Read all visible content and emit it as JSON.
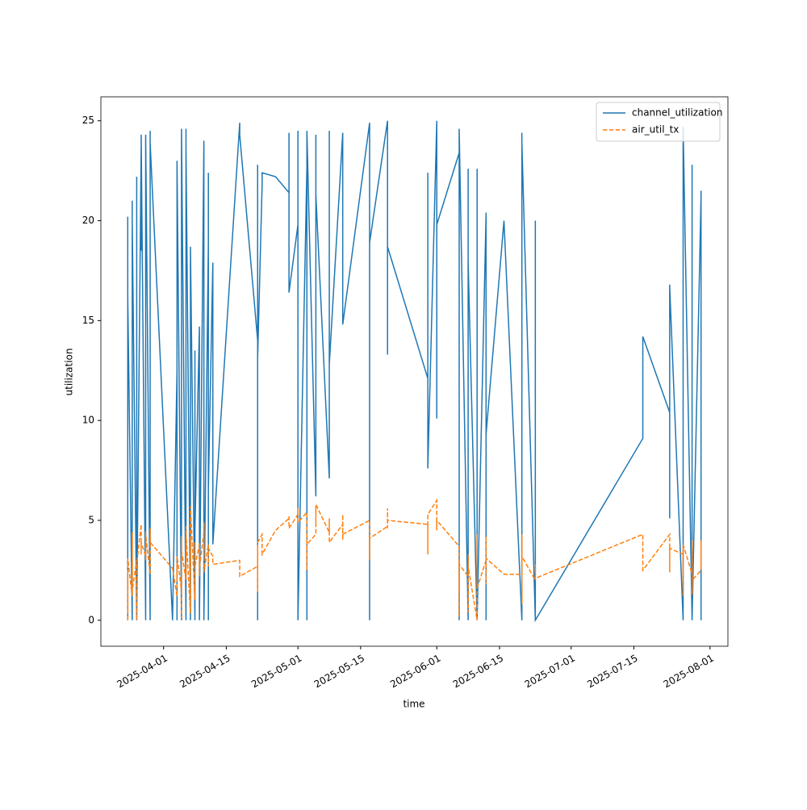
{
  "chart_data": {
    "type": "line",
    "xlabel": "time",
    "ylabel": "utilization",
    "x": [
      "2025-03-24",
      "2025-03-24",
      "2025-03-24",
      "2025-03-24",
      "2025-03-25",
      "2025-03-25",
      "2025-03-25",
      "2025-03-25",
      "2025-03-26",
      "2025-03-26",
      "2025-03-26",
      "2025-03-26",
      "2025-03-27",
      "2025-03-27",
      "2025-03-27",
      "2025-03-28",
      "2025-03-28",
      "2025-03-28",
      "2025-03-28",
      "2025-03-29",
      "2025-03-29",
      "2025-03-29",
      "2025-03-29",
      "2025-04-03",
      "2025-04-04",
      "2025-04-04",
      "2025-04-04",
      "2025-04-04",
      "2025-04-05",
      "2025-04-05",
      "2025-04-05",
      "2025-04-05",
      "2025-04-06",
      "2025-04-06",
      "2025-04-06",
      "2025-04-06",
      "2025-04-07",
      "2025-04-07",
      "2025-04-07",
      "2025-04-07",
      "2025-04-08",
      "2025-04-08",
      "2025-04-08",
      "2025-04-09",
      "2025-04-09",
      "2025-04-09",
      "2025-04-09",
      "2025-04-10",
      "2025-04-10",
      "2025-04-10",
      "2025-04-10",
      "2025-04-11",
      "2025-04-11",
      "2025-04-11",
      "2025-04-11",
      "2025-04-12",
      "2025-04-12",
      "2025-04-12",
      "2025-04-18",
      "2025-04-18",
      "2025-04-22",
      "2025-04-22",
      "2025-04-22",
      "2025-04-22",
      "2025-04-22",
      "2025-04-23",
      "2025-04-23",
      "2025-04-26",
      "2025-04-29",
      "2025-04-29",
      "2025-04-29",
      "2025-05-01",
      "2025-05-01",
      "2025-05-01",
      "2025-05-01",
      "2025-05-03",
      "2025-05-03",
      "2025-05-03",
      "2025-05-03",
      "2025-05-05",
      "2025-05-05",
      "2025-05-05",
      "2025-05-05",
      "2025-05-08",
      "2025-05-08",
      "2025-05-08",
      "2025-05-08",
      "2025-05-11",
      "2025-05-11",
      "2025-05-11",
      "2025-05-11",
      "2025-05-17",
      "2025-05-17",
      "2025-05-17",
      "2025-05-17",
      "2025-05-17",
      "2025-05-21",
      "2025-05-21",
      "2025-05-21",
      "2025-05-21",
      "2025-05-21",
      "2025-05-30",
      "2025-05-30",
      "2025-05-30",
      "2025-05-30",
      "2025-05-30",
      "2025-06-01",
      "2025-06-01",
      "2025-06-01",
      "2025-06-06",
      "2025-06-06",
      "2025-06-06",
      "2025-06-06",
      "2025-06-06",
      "2025-06-08",
      "2025-06-08",
      "2025-06-08",
      "2025-06-08",
      "2025-06-10",
      "2025-06-10",
      "2025-06-10",
      "2025-06-10",
      "2025-06-12",
      "2025-06-12",
      "2025-06-12",
      "2025-06-12",
      "2025-06-16",
      "2025-06-20",
      "2025-06-20",
      "2025-06-20",
      "2025-06-20",
      "2025-06-20",
      "2025-06-20",
      "2025-06-20",
      "2025-06-20",
      "2025-06-23",
      "2025-06-23",
      "2025-06-23",
      "2025-07-17",
      "2025-07-17",
      "2025-07-23",
      "2025-07-23",
      "2025-07-23",
      "2025-07-23",
      "2025-07-23",
      "2025-07-26",
      "2025-07-26",
      "2025-07-26",
      "2025-07-26",
      "2025-07-26",
      "2025-07-28",
      "2025-07-28",
      "2025-07-28",
      "2025-07-28",
      "2025-07-28",
      "2025-07-30",
      "2025-07-30",
      "2025-07-30",
      "2025-07-30"
    ],
    "series": [
      {
        "name": "channel_utilization",
        "color": "#1f77b4",
        "style": "solid",
        "values": [
          7.8,
          20.2,
          0,
          16.2,
          0,
          21,
          2,
          20,
          0,
          19.8,
          22.2,
          0,
          23.7,
          18.5,
          24.3,
          0,
          23.2,
          2.1,
          24.3,
          0,
          24.5,
          14.6,
          23.9,
          0,
          12.5,
          0,
          8.4,
          23,
          0,
          18.7,
          0,
          24.6,
          0,
          24.6,
          6.8,
          23.7,
          0,
          18.5,
          0,
          18.7,
          0,
          13.5,
          4.5,
          14.7,
          0,
          12,
          0,
          24,
          1.9,
          23.6,
          0,
          18.8,
          0,
          22.4,
          6.6,
          17.9,
          5.3,
          3.8,
          24.9,
          24.3,
          14,
          0,
          22.8,
          0,
          13.1,
          21.8,
          22.4,
          22.2,
          21.4,
          24.4,
          16.4,
          19.8,
          24.5,
          21.8,
          0,
          22.7,
          0,
          20,
          24.5,
          6.2,
          24.3,
          21.4,
          21.3,
          7.1,
          24.5,
          17.6,
          12.8,
          24.4,
          18,
          23.5,
          14.8,
          24.9,
          17.9,
          16.6,
          0,
          18.9,
          25,
          21.7,
          24.8,
          13.3,
          18.7,
          12.1,
          20,
          8.4,
          22.4,
          7.6,
          25,
          10.1,
          19.8,
          23.4,
          0,
          20.3,
          0,
          24.6,
          0,
          22.6,
          0,
          18,
          0,
          22.6,
          5.5,
          0,
          20.3,
          0,
          20.4,
          9.3,
          20,
          0,
          24,
          0,
          23.6,
          0,
          24.4,
          0,
          23.9,
          0,
          20,
          0,
          9.1,
          14.2,
          10.4,
          5.1,
          16.8,
          10.5,
          16.7,
          0,
          12.5,
          14.2,
          0,
          24.7,
          0,
          18.6,
          0,
          22.8,
          0,
          21.2,
          0,
          21.5,
          0
        ]
      },
      {
        "name": "air_util_tx",
        "color": "#ff7f0e",
        "style": "dashed",
        "values": [
          0,
          2.5,
          0.3,
          3.1,
          1.2,
          4.4,
          2.0,
          1.5,
          3.0,
          2.2,
          0,
          2.8,
          4.8,
          3.3,
          3.9,
          3.2,
          4.5,
          3.0,
          4.3,
          2.3,
          4.6,
          3.8,
          3.9,
          2.6,
          1.2,
          2.9,
          2.0,
          3.2,
          1.5,
          4.2,
          0.1,
          3.5,
          2.0,
          4.7,
          2.2,
          4.4,
          0.3,
          4.0,
          0.4,
          5.7,
          1.0,
          3.9,
          2.7,
          3.8,
          2.2,
          3.9,
          2.6,
          4.4,
          3.2,
          4.9,
          2.4,
          3.8,
          2.7,
          3.4,
          3.6,
          3.2,
          3.1,
          2.8,
          3.0,
          2.2,
          2.7,
          1.4,
          3.7,
          2.7,
          3.9,
          4.3,
          3.3,
          4.5,
          5.1,
          5.2,
          4.6,
          5.3,
          5.6,
          5.1,
          4.9,
          5.4,
          2.5,
          4.4,
          3.8,
          4.3,
          5.5,
          4.8,
          5.8,
          4.4,
          5.1,
          4.7,
          3.9,
          4.8,
          4.0,
          5.3,
          4.3,
          5.0,
          4.5,
          3.6,
          3.0,
          4.1,
          4.7,
          4.6,
          5.6,
          4.8,
          5.0,
          4.8,
          4.7,
          3.3,
          4.9,
          5.3,
          6.0,
          4.5,
          5.0,
          3.7,
          1.5,
          2.5,
          0.2,
          2.8,
          2.2,
          3.3,
          0.4,
          2.7,
          0,
          4.3,
          2.4,
          1.6,
          3.0,
          1.8,
          4.2,
          3.1,
          2.3,
          2.3,
          4.3,
          1.0,
          3.5,
          1.5,
          2.5,
          0.8,
          3.2,
          2.0,
          2.8,
          2.1,
          4.3,
          2.5,
          4.3,
          3.9,
          3.4,
          2.4,
          3.6,
          3.3,
          2.3,
          3.7,
          1.2,
          3.8,
          2.3,
          3.4,
          1.3,
          4.0,
          2.0,
          2.5,
          3.5,
          4.0,
          2.7
        ]
      }
    ],
    "xlim": [
      "2025-03-18",
      "2025-08-05"
    ],
    "xticks": [
      "2025-04-01",
      "2025-04-15",
      "2025-05-01",
      "2025-05-15",
      "2025-06-01",
      "2025-06-15",
      "2025-07-01",
      "2025-07-15",
      "2025-08-01"
    ],
    "ylim": [
      -1.3,
      26.2
    ],
    "yticks": [
      0,
      5,
      10,
      15,
      20,
      25
    ],
    "legend": "upper right"
  }
}
